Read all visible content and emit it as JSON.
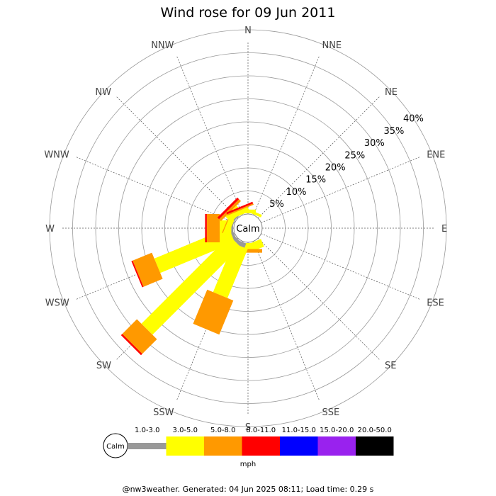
{
  "chart_data": {
    "type": "wind-rose",
    "title": "Wind rose for 09 Jun 2011",
    "unit": "mph",
    "calm_label": "Calm",
    "directions": [
      "N",
      "NNE",
      "NE",
      "ENE",
      "E",
      "ESE",
      "SE",
      "SSE",
      "S",
      "SSW",
      "SW",
      "WSW",
      "W",
      "WNW",
      "NW",
      "NNW"
    ],
    "rings": [
      5,
      10,
      15,
      20,
      25,
      30,
      35,
      40
    ],
    "ring_labels": [
      "5%",
      "10%",
      "15%",
      "20%",
      "25%",
      "30%",
      "35%",
      "40%"
    ],
    "speed_bins": [
      {
        "label": "1.0-3.0",
        "color": "#999999"
      },
      {
        "label": "3.0-5.0",
        "color": "#ffff00"
      },
      {
        "label": "5.0-8.0",
        "color": "#ff9900"
      },
      {
        "label": "8.0-11.0",
        "color": "#ff0000"
      },
      {
        "label": "11.0-15.0",
        "color": "#0000ff"
      },
      {
        "label": "15.0-20.0",
        "color": "#9922ee"
      },
      {
        "label": "20.0-50.0",
        "color": "#000000"
      }
    ],
    "petals": [
      {
        "direction": "N",
        "values": [
          0,
          0.8,
          0,
          0,
          0,
          0,
          0
        ]
      },
      {
        "direction": "NNE",
        "values": [
          0,
          0.6,
          0,
          0,
          0,
          0,
          0
        ]
      },
      {
        "direction": "SSE",
        "values": [
          0,
          1.8,
          0,
          0,
          0,
          0,
          0
        ]
      },
      {
        "direction": "S",
        "values": [
          0,
          1.3,
          0.8,
          0,
          0,
          0,
          0
        ]
      },
      {
        "direction": "SSW",
        "values": [
          1.0,
          11.5,
          8.0,
          0,
          0,
          0,
          0
        ]
      },
      {
        "direction": "SW",
        "values": [
          0.8,
          27.0,
          4.5,
          0.4,
          0,
          0,
          0
        ]
      },
      {
        "direction": "WSW",
        "values": [
          0.6,
          17.5,
          4.5,
          0.3,
          0,
          0,
          0
        ]
      },
      {
        "direction": "W",
        "values": [
          0.4,
          2.5,
          2.8,
          0.4,
          0,
          0,
          0
        ]
      },
      {
        "direction": "WNW",
        "values": [
          0.2,
          1.2,
          0.2,
          0,
          0,
          0,
          0
        ]
      },
      {
        "direction": "NW",
        "values": [
          0.3,
          1.7,
          0.6,
          0.5,
          0,
          0,
          0
        ]
      },
      {
        "direction": "NNW",
        "values": [
          0,
          1.0,
          0.3,
          0.4,
          0,
          0,
          0
        ]
      }
    ]
  },
  "footer": "@nw3weather. Generated: 04 Jun 2025 08:11; Load time: 0.29 s"
}
